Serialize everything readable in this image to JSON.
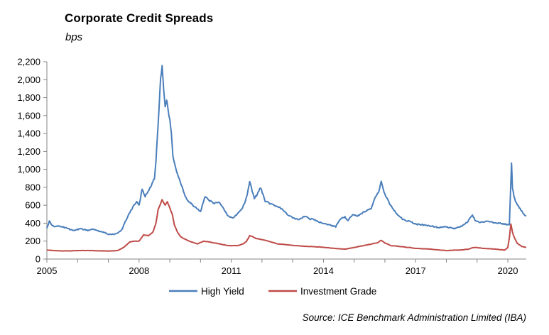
{
  "header": {
    "title": "Corporate Credit Spreads",
    "subtitle": "bps"
  },
  "footer": {
    "source": "Source: ICE Benchmark Administration Limited (IBA)"
  },
  "colors": {
    "high_yield": "#4a7ebb",
    "investment_grade": "#be4b48",
    "axis": "#868686"
  },
  "chart_data": {
    "type": "line",
    "title": "Corporate Credit Spreads",
    "ylabel": "bps",
    "xlabel": "",
    "xlim": [
      2005,
      2020.6
    ],
    "ylim": [
      0,
      2200
    ],
    "x_ticks": [
      2005,
      2008,
      2011,
      2014,
      2017,
      2020
    ],
    "x_tick_labels": [
      "2005",
      "2008",
      "2011",
      "2014",
      "2017",
      "2020"
    ],
    "y_ticks": [
      0,
      200,
      400,
      600,
      800,
      1000,
      1200,
      1400,
      1600,
      1800,
      2000,
      2200
    ],
    "y_tick_labels": [
      "0",
      "200",
      "400",
      "600",
      "800",
      "1,000",
      "1,200",
      "1,400",
      "1,600",
      "1,800",
      "2,000",
      "2,200"
    ],
    "grid": false,
    "legend_position": "bottom",
    "series": [
      {
        "name": "High Yield",
        "x": [
          2005.0,
          2005.08,
          2005.17,
          2005.25,
          2005.33,
          2005.45,
          2005.6,
          2005.75,
          2005.9,
          2006.1,
          2006.3,
          2006.5,
          2006.7,
          2006.9,
          2007.1,
          2007.3,
          2007.45,
          2007.55,
          2007.62,
          2007.7,
          2007.8,
          2007.92,
          2008.0,
          2008.1,
          2008.2,
          2008.3,
          2008.4,
          2008.5,
          2008.55,
          2008.62,
          2008.7,
          2008.75,
          2008.8,
          2008.85,
          2008.9,
          2008.95,
          2009.0,
          2009.05,
          2009.1,
          2009.2,
          2009.3,
          2009.4,
          2009.5,
          2009.6,
          2009.7,
          2009.8,
          2009.9,
          2010.0,
          2010.15,
          2010.3,
          2010.45,
          2010.6,
          2010.75,
          2010.9,
          2011.05,
          2011.2,
          2011.35,
          2011.45,
          2011.52,
          2011.6,
          2011.68,
          2011.75,
          2011.85,
          2011.95,
          2012.1,
          2012.25,
          2012.4,
          2012.55,
          2012.7,
          2012.85,
          2013.0,
          2013.2,
          2013.4,
          2013.55,
          2013.7,
          2013.85,
          2014.0,
          2014.2,
          2014.4,
          2014.55,
          2014.7,
          2014.8,
          2014.95,
          2015.1,
          2015.25,
          2015.4,
          2015.55,
          2015.7,
          2015.8,
          2015.88,
          2016.0,
          2016.15,
          2016.3,
          2016.45,
          2016.6,
          2016.8,
          2017.0,
          2017.25,
          2017.5,
          2017.75,
          2018.0,
          2018.25,
          2018.5,
          2018.7,
          2018.85,
          2018.95,
          2019.1,
          2019.3,
          2019.5,
          2019.7,
          2019.9,
          2020.05,
          2020.12,
          2020.15,
          2020.2,
          2020.25,
          2020.32,
          2020.4,
          2020.45,
          2020.5,
          2020.55,
          2020.6
        ],
        "y": [
          350,
          420,
          380,
          360,
          370,
          360,
          350,
          330,
          320,
          340,
          320,
          330,
          310,
          290,
          270,
          290,
          330,
          420,
          460,
          520,
          580,
          640,
          600,
          780,
          700,
          760,
          820,
          900,
          1100,
          1500,
          2000,
          2150,
          1900,
          1700,
          1780,
          1650,
          1550,
          1400,
          1150,
          1000,
          900,
          800,
          700,
          650,
          620,
          580,
          560,
          530,
          700,
          650,
          620,
          640,
          560,
          480,
          460,
          500,
          560,
          640,
          720,
          870,
          760,
          680,
          720,
          800,
          650,
          620,
          600,
          580,
          540,
          490,
          460,
          440,
          480,
          450,
          440,
          410,
          400,
          380,
          360,
          450,
          470,
          430,
          500,
          480,
          510,
          540,
          560,
          700,
          750,
          860,
          720,
          620,
          540,
          480,
          440,
          420,
          390,
          380,
          370,
          350,
          360,
          340,
          370,
          420,
          490,
          420,
          410,
          420,
          410,
          400,
          390,
          380,
          1080,
          800,
          700,
          640,
          600,
          560,
          540,
          500,
          490,
          480
        ]
      },
      {
        "name": "Investment Grade",
        "x": [
          2005.0,
          2005.2,
          2005.5,
          2005.8,
          2006.1,
          2006.4,
          2006.7,
          2007.0,
          2007.3,
          2007.5,
          2007.6,
          2007.7,
          2007.85,
          2008.0,
          2008.15,
          2008.3,
          2008.45,
          2008.55,
          2008.62,
          2008.7,
          2008.75,
          2008.8,
          2008.85,
          2008.92,
          2009.0,
          2009.08,
          2009.15,
          2009.25,
          2009.35,
          2009.5,
          2009.7,
          2009.9,
          2010.1,
          2010.3,
          2010.6,
          2010.9,
          2011.2,
          2011.4,
          2011.5,
          2011.6,
          2011.7,
          2011.8,
          2011.95,
          2012.1,
          2012.3,
          2012.5,
          2012.8,
          2013.1,
          2013.5,
          2013.9,
          2014.3,
          2014.7,
          2015.0,
          2015.3,
          2015.6,
          2015.75,
          2015.88,
          2016.0,
          2016.2,
          2016.5,
          2017.0,
          2017.5,
          2018.0,
          2018.4,
          2018.7,
          2018.9,
          2019.2,
          2019.6,
          2019.9,
          2020.0,
          2020.05,
          2020.1,
          2020.15,
          2020.2,
          2020.3,
          2020.45,
          2020.6
        ],
        "y": [
          100,
          95,
          90,
          92,
          95,
          95,
          92,
          90,
          95,
          130,
          160,
          190,
          200,
          200,
          270,
          260,
          300,
          400,
          550,
          620,
          660,
          630,
          600,
          640,
          570,
          500,
          380,
          300,
          250,
          220,
          190,
          170,
          200,
          190,
          170,
          150,
          150,
          170,
          200,
          260,
          250,
          230,
          220,
          210,
          190,
          170,
          160,
          150,
          140,
          135,
          120,
          110,
          130,
          150,
          170,
          180,
          210,
          180,
          150,
          140,
          120,
          110,
          95,
          100,
          110,
          130,
          120,
          110,
          100,
          130,
          240,
          390,
          300,
          250,
          180,
          140,
          130
        ]
      }
    ]
  }
}
